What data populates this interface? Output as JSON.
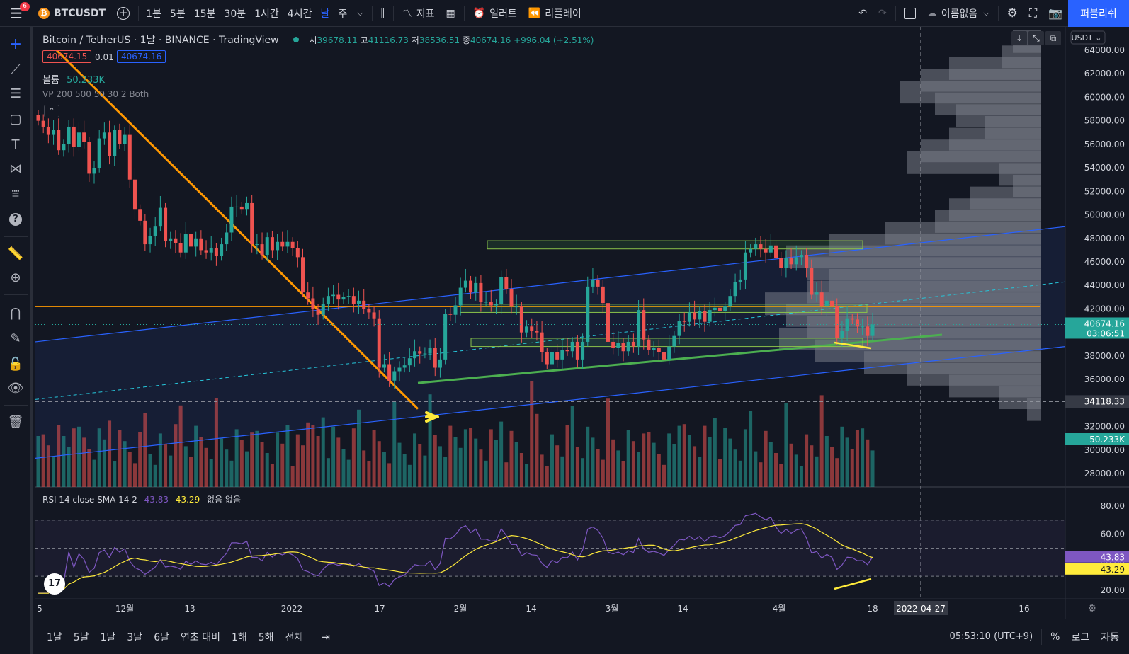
{
  "topbar": {
    "menu_badge": "6",
    "symbol": "BTCUSDT",
    "intervals": [
      "1분",
      "5분",
      "15분",
      "30분",
      "1시간",
      "4시간",
      "날",
      "주"
    ],
    "active_interval": "날",
    "indicators_label": "지표",
    "alert_label": "얼러트",
    "replay_label": "리플레이",
    "layout_name": "이름없음",
    "publish_label": "퍼블리쉬"
  },
  "legend": {
    "title": "Bitcoin / TetherUS · 1날 · BINANCE · TradingView",
    "open_label": "시",
    "open": "39678.11",
    "high_label": "고",
    "high": "41116.73",
    "low_label": "저",
    "low": "38536.51",
    "close_label": "종",
    "close": "40674.16",
    "change": "+996.04 (+2.51%)",
    "bid": "40674.15",
    "spread": "0.01",
    "ask": "40674.16",
    "volume_label": "볼륨",
    "volume_value": "50.233K",
    "vp_label": "VP 200 500 50 30 2 Both",
    "rsi_label": "RSI 14 close SMA 14 2",
    "rsi_value": "43.83",
    "rsi_sma_value": "43.29",
    "rsi_extra": "없음 없음"
  },
  "price_axis": {
    "currency": "USDT",
    "labels": [
      "64000.00",
      "62000.00",
      "60000.00",
      "58000.00",
      "56000.00",
      "54000.00",
      "52000.00",
      "50000.00",
      "48000.00",
      "46000.00",
      "44000.00",
      "42000.00",
      "40000.00",
      "38000.00",
      "36000.00",
      "34000.00",
      "32000.00",
      "30000.00",
      "28000.00"
    ],
    "current_price": "40674.16",
    "countdown": "03:06:51",
    "crosshair_price": "34118.33",
    "volume_tag": "50.233K"
  },
  "rsi_axis": {
    "labels": [
      "80.00",
      "60.00",
      "40.00",
      "20.00"
    ],
    "rsi_tag": "43.83",
    "sma_tag": "43.29"
  },
  "time_axis": {
    "labels": [
      "5",
      "12월",
      "13",
      "2022",
      "17",
      "2월",
      "14",
      "3월",
      "14",
      "4월",
      "18",
      "16"
    ],
    "crosshair_date": "2022-04-27"
  },
  "bottombar": {
    "ranges": [
      "1날",
      "5날",
      "1달",
      "3달",
      "6달",
      "연초 대비",
      "1해",
      "5해",
      "전체"
    ],
    "clock": "05:53:10 (UTC+9)",
    "percent_label": "%",
    "log_label": "로그",
    "auto_label": "자동"
  },
  "colors": {
    "background": "#131722",
    "up": "#26a69a",
    "down": "#ef5350",
    "trendline_orange": "#ff9800",
    "channel_blue": "#2962ff",
    "support_green": "#4caf50",
    "rsi_line": "#7e57c2",
    "rsi_sma": "#ffeb3b",
    "accent": "#2962ff"
  },
  "chart_data": {
    "type": "candlestick",
    "symbol": "BTCUSDT",
    "interval": "1D",
    "ylim": [
      27000,
      65000
    ],
    "y_ticks": [
      28000,
      30000,
      32000,
      34000,
      36000,
      38000,
      40000,
      42000,
      44000,
      46000,
      48000,
      50000,
      52000,
      54000,
      56000,
      58000,
      60000,
      62000,
      64000
    ],
    "last": {
      "open": 39678.11,
      "high": 41116.73,
      "low": 38536.51,
      "close": 40674.16,
      "volume_k": 50.233
    },
    "closes": [
      58000,
      57500,
      56800,
      57200,
      55500,
      56000,
      57500,
      55800,
      57000,
      56200,
      53500,
      54000,
      56500,
      57000,
      55000,
      57200,
      56000,
      56800,
      53000,
      50500,
      49500,
      47500,
      48200,
      49000,
      50600,
      47800,
      48000,
      47600,
      46800,
      48400,
      47300,
      48000,
      47000,
      46800,
      47200,
      46500,
      47500,
      48500,
      50700,
      50700,
      50500,
      51000,
      47500,
      47500,
      46600,
      48100,
      47000,
      47700,
      47300,
      47700,
      47200,
      46400,
      43400,
      42900,
      42000,
      41500,
      42400,
      43100,
      43200,
      42800,
      43000,
      43100,
      42400,
      42700,
      42000,
      41700,
      41200,
      37000,
      37300,
      35900,
      36700,
      37000,
      37200,
      37800,
      38400,
      38200,
      38200,
      38700,
      37000,
      37700,
      41600,
      41500,
      42300,
      43800,
      44400,
      43400,
      44200,
      42600,
      42600,
      42300,
      42400,
      44700,
      43700,
      42200,
      42200,
      40000,
      40500,
      40100,
      40000,
      38300,
      37300,
      38300,
      37700,
      38500,
      38400,
      39200,
      37700,
      39200,
      43900,
      44500,
      43900,
      42500,
      39200,
      38700,
      39100,
      38400,
      39200,
      38800,
      41900,
      39400,
      38500,
      38700,
      38300,
      37700,
      38800,
      39700,
      41000,
      40900,
      41700,
      41100,
      41800,
      40900,
      41900,
      42100,
      41800,
      42200,
      43100,
      44300,
      44500,
      46800,
      47100,
      47500,
      47100,
      46800,
      47400,
      46300,
      45500,
      46300,
      45800,
      46400,
      46600,
      45500,
      43200,
      43400,
      42200,
      42700,
      42200,
      39500,
      40100,
      41200,
      41100,
      40500,
      40500,
      39700,
      40674
    ],
    "volume_range_k": [
      0,
      120
    ],
    "rsi": {
      "period": 14,
      "sma_period": 14,
      "last_rsi": 43.83,
      "last_sma": 43.29,
      "ylim": [
        15,
        85
      ],
      "bands": [
        70,
        50,
        30
      ]
    },
    "annotations": {
      "horizontal_line": 42200,
      "crosshair_price": 34118.33,
      "crosshair_date": "2022-04-27"
    }
  }
}
